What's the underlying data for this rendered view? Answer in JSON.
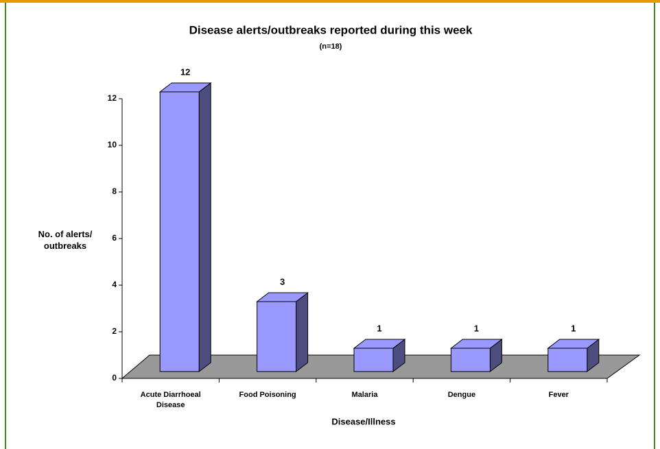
{
  "chart_data": {
    "type": "bar3d",
    "title": "Disease alerts/outbreaks reported during this week",
    "subtitle": "(n=18)",
    "x_label": "Disease/Illness",
    "y_label": "No. of alerts/ outbreaks",
    "categories": [
      "Acute Diarrhoeal Disease",
      "Food Poisoning",
      "Malaria",
      "Dengue",
      "Fever"
    ],
    "values": [
      12,
      3,
      1,
      1,
      1
    ],
    "color": "#9999ff",
    "ylim": [
      0,
      12
    ],
    "yticks": [
      0,
      2,
      4,
      6,
      8,
      10,
      12
    ]
  }
}
